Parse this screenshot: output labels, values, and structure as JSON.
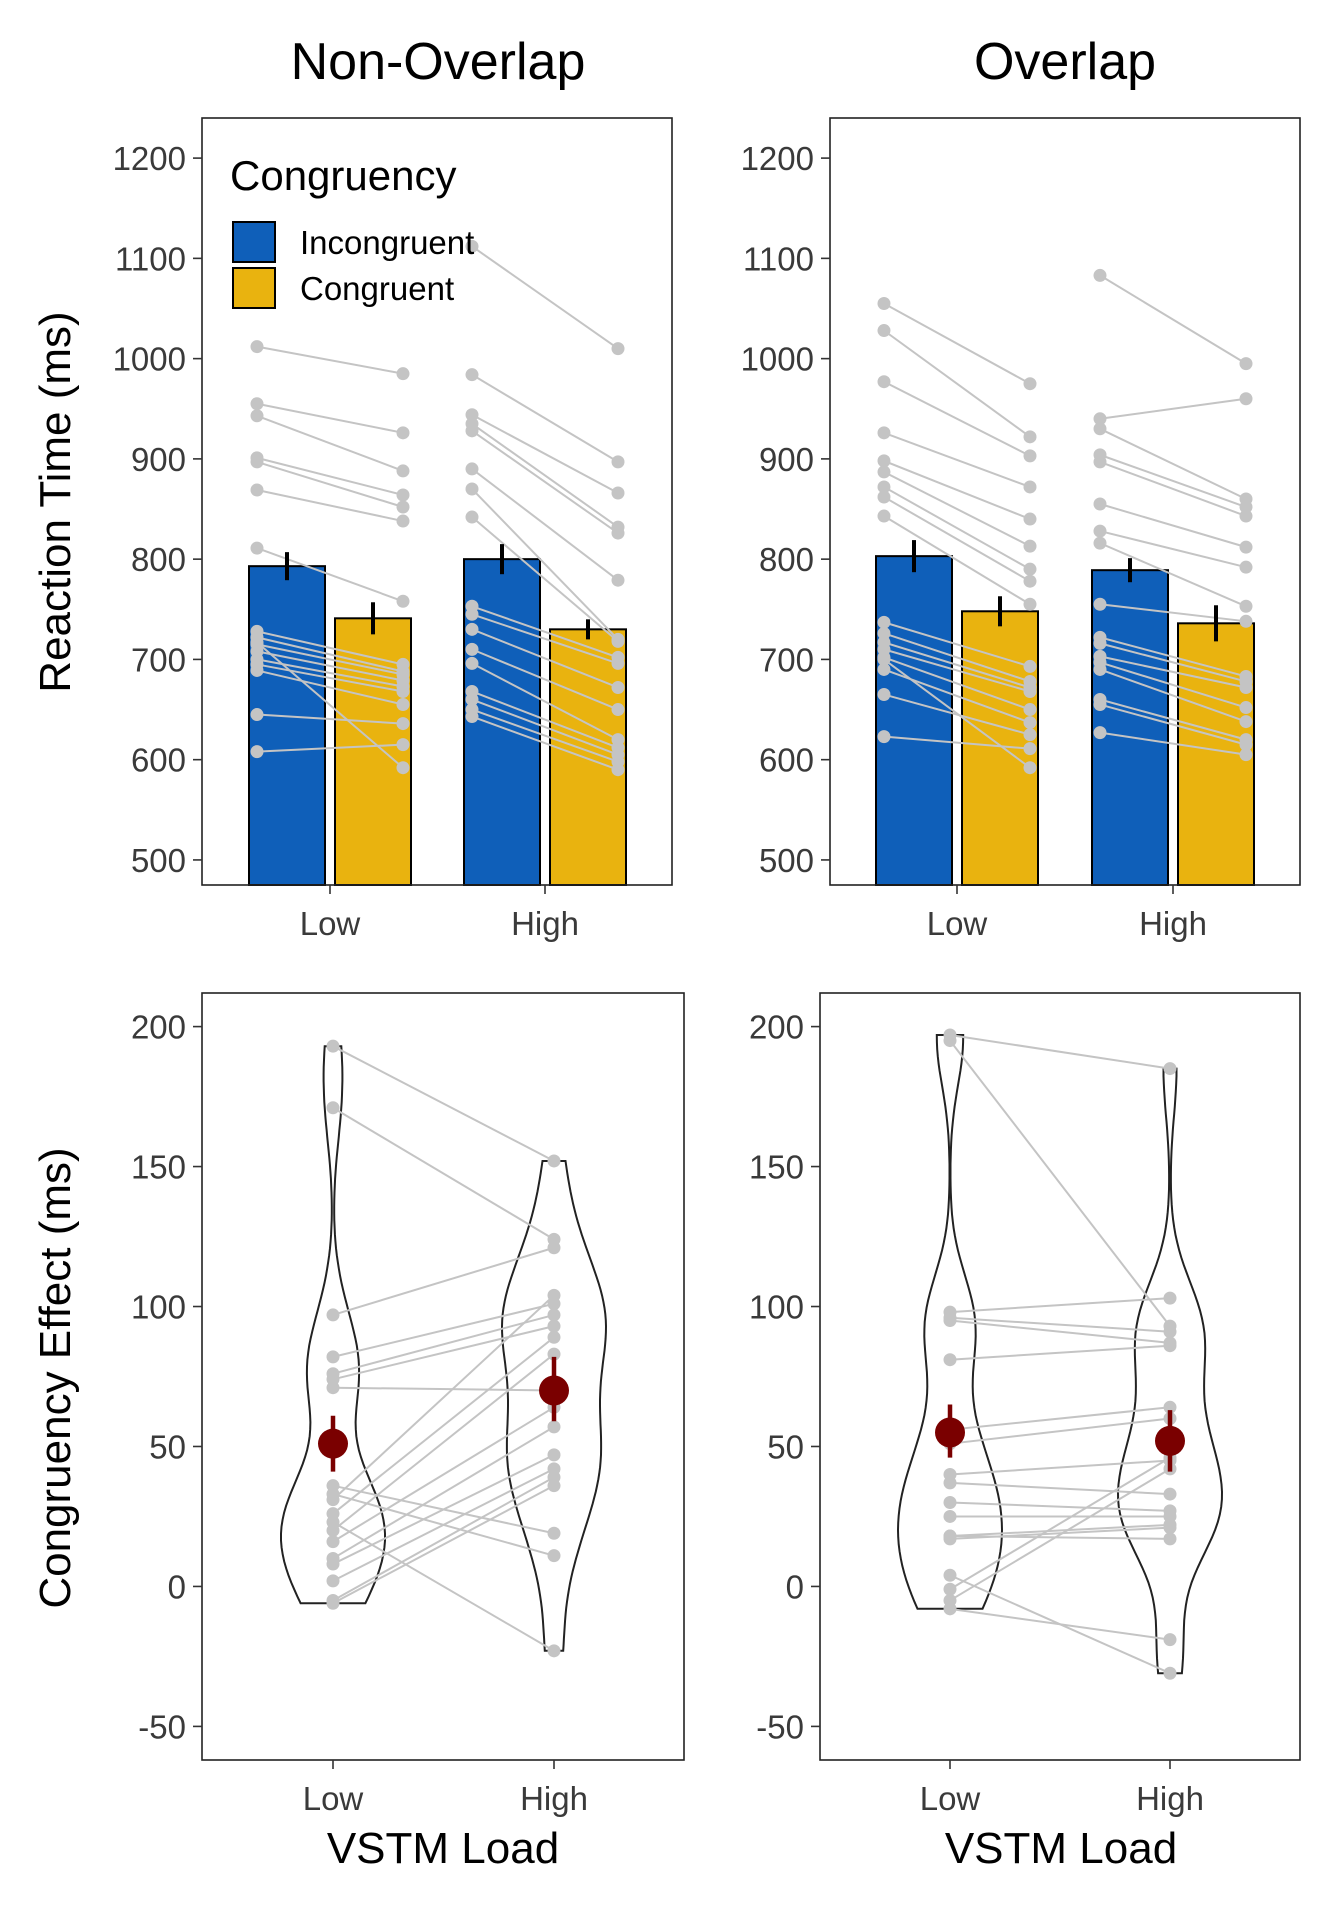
{
  "colors": {
    "incongruent": "#0f5fb9",
    "congruent": "#e9b30f",
    "subject": "#c4c4c4",
    "summary": "#7a0000",
    "frame": "#222222"
  },
  "labels": {
    "panel_titles": [
      "Non-Overlap",
      "Overlap"
    ],
    "ylabel_top": "Reaction Time (ms)",
    "ylabel_bottom": "Congruency Effect (ms)",
    "xlabel": "VSTM Load",
    "legend_title": "Congruency",
    "legend_items": [
      "Incongruent",
      "Congruent"
    ],
    "loads": [
      "Low",
      "High"
    ]
  },
  "chart_data": [
    {
      "type": "bar",
      "panel": "Non-Overlap",
      "categories": [
        "Low",
        "High"
      ],
      "ylabel": "Reaction Time (ms)",
      "ylim": [
        475,
        1240
      ],
      "yticks": [
        500,
        600,
        700,
        800,
        900,
        1000,
        1100,
        1200
      ],
      "legend": "top-left",
      "series": [
        {
          "name": "Incongruent",
          "values": [
            793,
            800
          ],
          "se": [
            14,
            15
          ]
        },
        {
          "name": "Congruent",
          "values": [
            741,
            730
          ],
          "se": [
            16,
            10
          ]
        }
      ],
      "subjects": [
        [
          [
            1012,
            985
          ],
          [
            955,
            926
          ],
          [
            943,
            888
          ],
          [
            901,
            864
          ],
          [
            897,
            852
          ],
          [
            869,
            838
          ],
          [
            811,
            758
          ],
          [
            728,
            695
          ],
          [
            722,
            688
          ],
          [
            715,
            685
          ],
          [
            708,
            679
          ],
          [
            700,
            673
          ],
          [
            695,
            668
          ],
          [
            689,
            655
          ],
          [
            645,
            636
          ],
          [
            608,
            615
          ],
          [
            717,
            592
          ]
        ],
        [
          [
            1112,
            1010
          ],
          [
            984,
            897
          ],
          [
            944,
            866
          ],
          [
            935,
            832
          ],
          [
            928,
            826
          ],
          [
            890,
            779
          ],
          [
            870,
            720
          ],
          [
            842,
            718
          ],
          [
            753,
            702
          ],
          [
            745,
            696
          ],
          [
            730,
            672
          ],
          [
            710,
            650
          ],
          [
            696,
            620
          ],
          [
            668,
            612
          ],
          [
            660,
            605
          ],
          [
            650,
            598
          ],
          [
            643,
            590
          ]
        ]
      ]
    },
    {
      "type": "bar",
      "panel": "Overlap",
      "categories": [
        "Low",
        "High"
      ],
      "ylim": [
        475,
        1240
      ],
      "yticks": [
        500,
        600,
        700,
        800,
        900,
        1000,
        1100,
        1200
      ],
      "series": [
        {
          "name": "Incongruent",
          "values": [
            803,
            789
          ],
          "se": [
            16,
            12
          ]
        },
        {
          "name": "Congruent",
          "values": [
            748,
            736
          ],
          "se": [
            15,
            18
          ]
        }
      ],
      "subjects": [
        [
          [
            1055,
            975
          ],
          [
            1028,
            922
          ],
          [
            977,
            903
          ],
          [
            926,
            872
          ],
          [
            898,
            840
          ],
          [
            887,
            813
          ],
          [
            872,
            790
          ],
          [
            862,
            778
          ],
          [
            843,
            755
          ],
          [
            737,
            693
          ],
          [
            726,
            678
          ],
          [
            717,
            672
          ],
          [
            710,
            668
          ],
          [
            702,
            650
          ],
          [
            690,
            637
          ],
          [
            665,
            625
          ],
          [
            623,
            611
          ],
          [
            700,
            592
          ]
        ],
        [
          [
            1083,
            995
          ],
          [
            940,
            960
          ],
          [
            930,
            860
          ],
          [
            904,
            852
          ],
          [
            897,
            843
          ],
          [
            855,
            812
          ],
          [
            828,
            792
          ],
          [
            816,
            753
          ],
          [
            755,
            738
          ],
          [
            722,
            683
          ],
          [
            716,
            678
          ],
          [
            703,
            672
          ],
          [
            697,
            652
          ],
          [
            690,
            638
          ],
          [
            660,
            620
          ],
          [
            655,
            615
          ],
          [
            627,
            605
          ]
        ]
      ]
    },
    {
      "type": "violin",
      "panel": "Non-Overlap",
      "categories": [
        "Low",
        "High"
      ],
      "xlabel": "VSTM Load",
      "ylabel": "Congruency Effect (ms)",
      "ylim": [
        -62,
        212
      ],
      "yticks": [
        -50,
        0,
        50,
        100,
        150,
        200
      ],
      "summary": [
        {
          "x": "Low",
          "mean": 51,
          "lo": 41,
          "hi": 61
        },
        {
          "x": "High",
          "mean": 70,
          "lo": 59,
          "hi": 82
        }
      ],
      "pairs": [
        [
          193,
          152
        ],
        [
          171,
          124
        ],
        [
          97,
          121
        ],
        [
          82,
          101
        ],
        [
          76,
          97
        ],
        [
          74,
          93
        ],
        [
          71,
          70
        ],
        [
          31,
          104
        ],
        [
          26,
          89
        ],
        [
          20,
          83
        ],
        [
          16,
          64
        ],
        [
          10,
          57
        ],
        [
          8,
          47
        ],
        [
          2,
          42
        ],
        [
          -5,
          39
        ],
        [
          -6,
          36
        ],
        [
          36,
          19
        ],
        [
          33,
          11
        ],
        [
          23,
          -23
        ]
      ]
    },
    {
      "type": "violin",
      "panel": "Overlap",
      "categories": [
        "Low",
        "High"
      ],
      "xlabel": "VSTM Load",
      "ylim": [
        -62,
        212
      ],
      "yticks": [
        -50,
        0,
        50,
        100,
        150,
        200
      ],
      "summary": [
        {
          "x": "Low",
          "mean": 55,
          "lo": 46,
          "hi": 65
        },
        {
          "x": "High",
          "mean": 52,
          "lo": 41,
          "hi": 63
        }
      ],
      "pairs": [
        [
          197,
          185
        ],
        [
          195,
          93
        ],
        [
          98,
          103
        ],
        [
          96,
          91
        ],
        [
          95,
          87
        ],
        [
          81,
          86
        ],
        [
          56,
          64
        ],
        [
          51,
          60
        ],
        [
          40,
          45
        ],
        [
          37,
          33
        ],
        [
          30,
          27
        ],
        [
          25,
          25
        ],
        [
          18,
          22
        ],
        [
          18,
          17
        ],
        [
          17,
          21
        ],
        [
          4,
          -31
        ],
        [
          -1,
          46
        ],
        [
          -5,
          42
        ],
        [
          -8,
          -19
        ]
      ]
    }
  ]
}
